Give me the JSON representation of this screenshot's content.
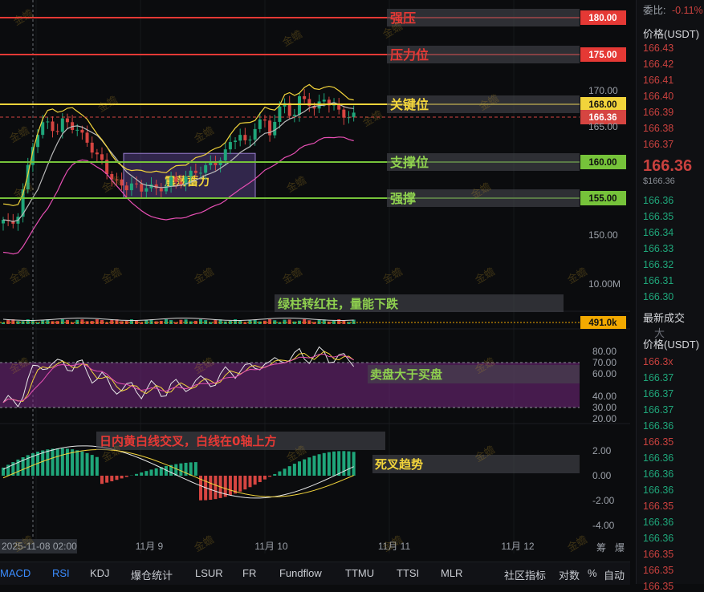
{
  "chart_data": {
    "type": "candlestick",
    "price_axis": {
      "ticks": [
        "170.00",
        "165.00",
        "150.00"
      ]
    },
    "volume_axis": {
      "ticks": [
        "10.00M"
      ]
    },
    "rsi_axis": {
      "ticks": [
        "80.00",
        "70.00",
        "60.00",
        "40.00",
        "30.00",
        "20.00"
      ]
    },
    "macd_axis": {
      "ticks": [
        "2.00",
        "0.00",
        "-2.00",
        "-4.00"
      ]
    },
    "x_ticks": [
      "2025-11-08 02:00",
      "11月 9",
      "11月 10",
      "11月 11",
      "11月 12"
    ],
    "levels": [
      {
        "label": "强压",
        "value": "180.00",
        "color": "#e53935"
      },
      {
        "label": "压力位",
        "value": "175.00",
        "color": "#e53935"
      },
      {
        "label": "关键位",
        "value": "168.00",
        "color": "#f2d43b"
      },
      {
        "label": "支撑位",
        "value": "160.00",
        "color": "#76c33a"
      },
      {
        "label": "强撑",
        "value": "155.00",
        "color": "#76c33a"
      }
    ],
    "last_price_tag": "166.36",
    "volume_tag": "491.0k",
    "box_label": "震荡蓄力",
    "annotations": {
      "volume": "绿柱转红柱，量能下跌",
      "rsi": "卖盘大于买盘",
      "macd_line": "日内黄白线交叉，白线在0轴上方",
      "macd_trend": "死叉趋势"
    },
    "watermark": "金蟾"
  },
  "right_panel": {
    "ratio_label": "委比:",
    "ratio_value": "-0.11%",
    "price_header": "价格(USDT)",
    "asks": [
      "166.43",
      "166.42",
      "166.41",
      "166.40",
      "166.39",
      "166.38",
      "166.37"
    ],
    "last_price": "166.36",
    "last_price_sub": "$166.36",
    "bids": [
      "166.36",
      "166.35",
      "166.34",
      "166.33",
      "166.32",
      "166.31",
      "166.30"
    ],
    "trades_title": "最新成交",
    "trades_title_extra": "大",
    "trades_header": "价格(USDT)",
    "trades": [
      {
        "p": "166.3x",
        "c": "#c9413e"
      },
      {
        "p": "166.37",
        "c": "#1fa67a"
      },
      {
        "p": "166.37",
        "c": "#1fa67a"
      },
      {
        "p": "166.37",
        "c": "#1fa67a"
      },
      {
        "p": "166.36",
        "c": "#1fa67a"
      },
      {
        "p": "166.35",
        "c": "#c9413e"
      },
      {
        "p": "166.36",
        "c": "#1fa67a"
      },
      {
        "p": "166.36",
        "c": "#1fa67a"
      },
      {
        "p": "166.36",
        "c": "#1fa67a"
      },
      {
        "p": "166.35",
        "c": "#c9413e"
      },
      {
        "p": "166.36",
        "c": "#1fa67a"
      },
      {
        "p": "166.36",
        "c": "#1fa67a"
      },
      {
        "p": "166.35",
        "c": "#c9413e"
      },
      {
        "p": "166.35",
        "c": "#c9413e"
      },
      {
        "p": "166.35",
        "c": "#c9413e"
      }
    ]
  },
  "bottom_tabs": [
    "MACD",
    "RSI",
    "KDJ",
    "爆仓统计",
    "LSUR",
    "FR",
    "Fundflow",
    "TTMU",
    "TTSI",
    "MLR",
    "社区指标",
    "对数",
    "%",
    "自动"
  ],
  "corner_labels": [
    "筹",
    "爆"
  ]
}
